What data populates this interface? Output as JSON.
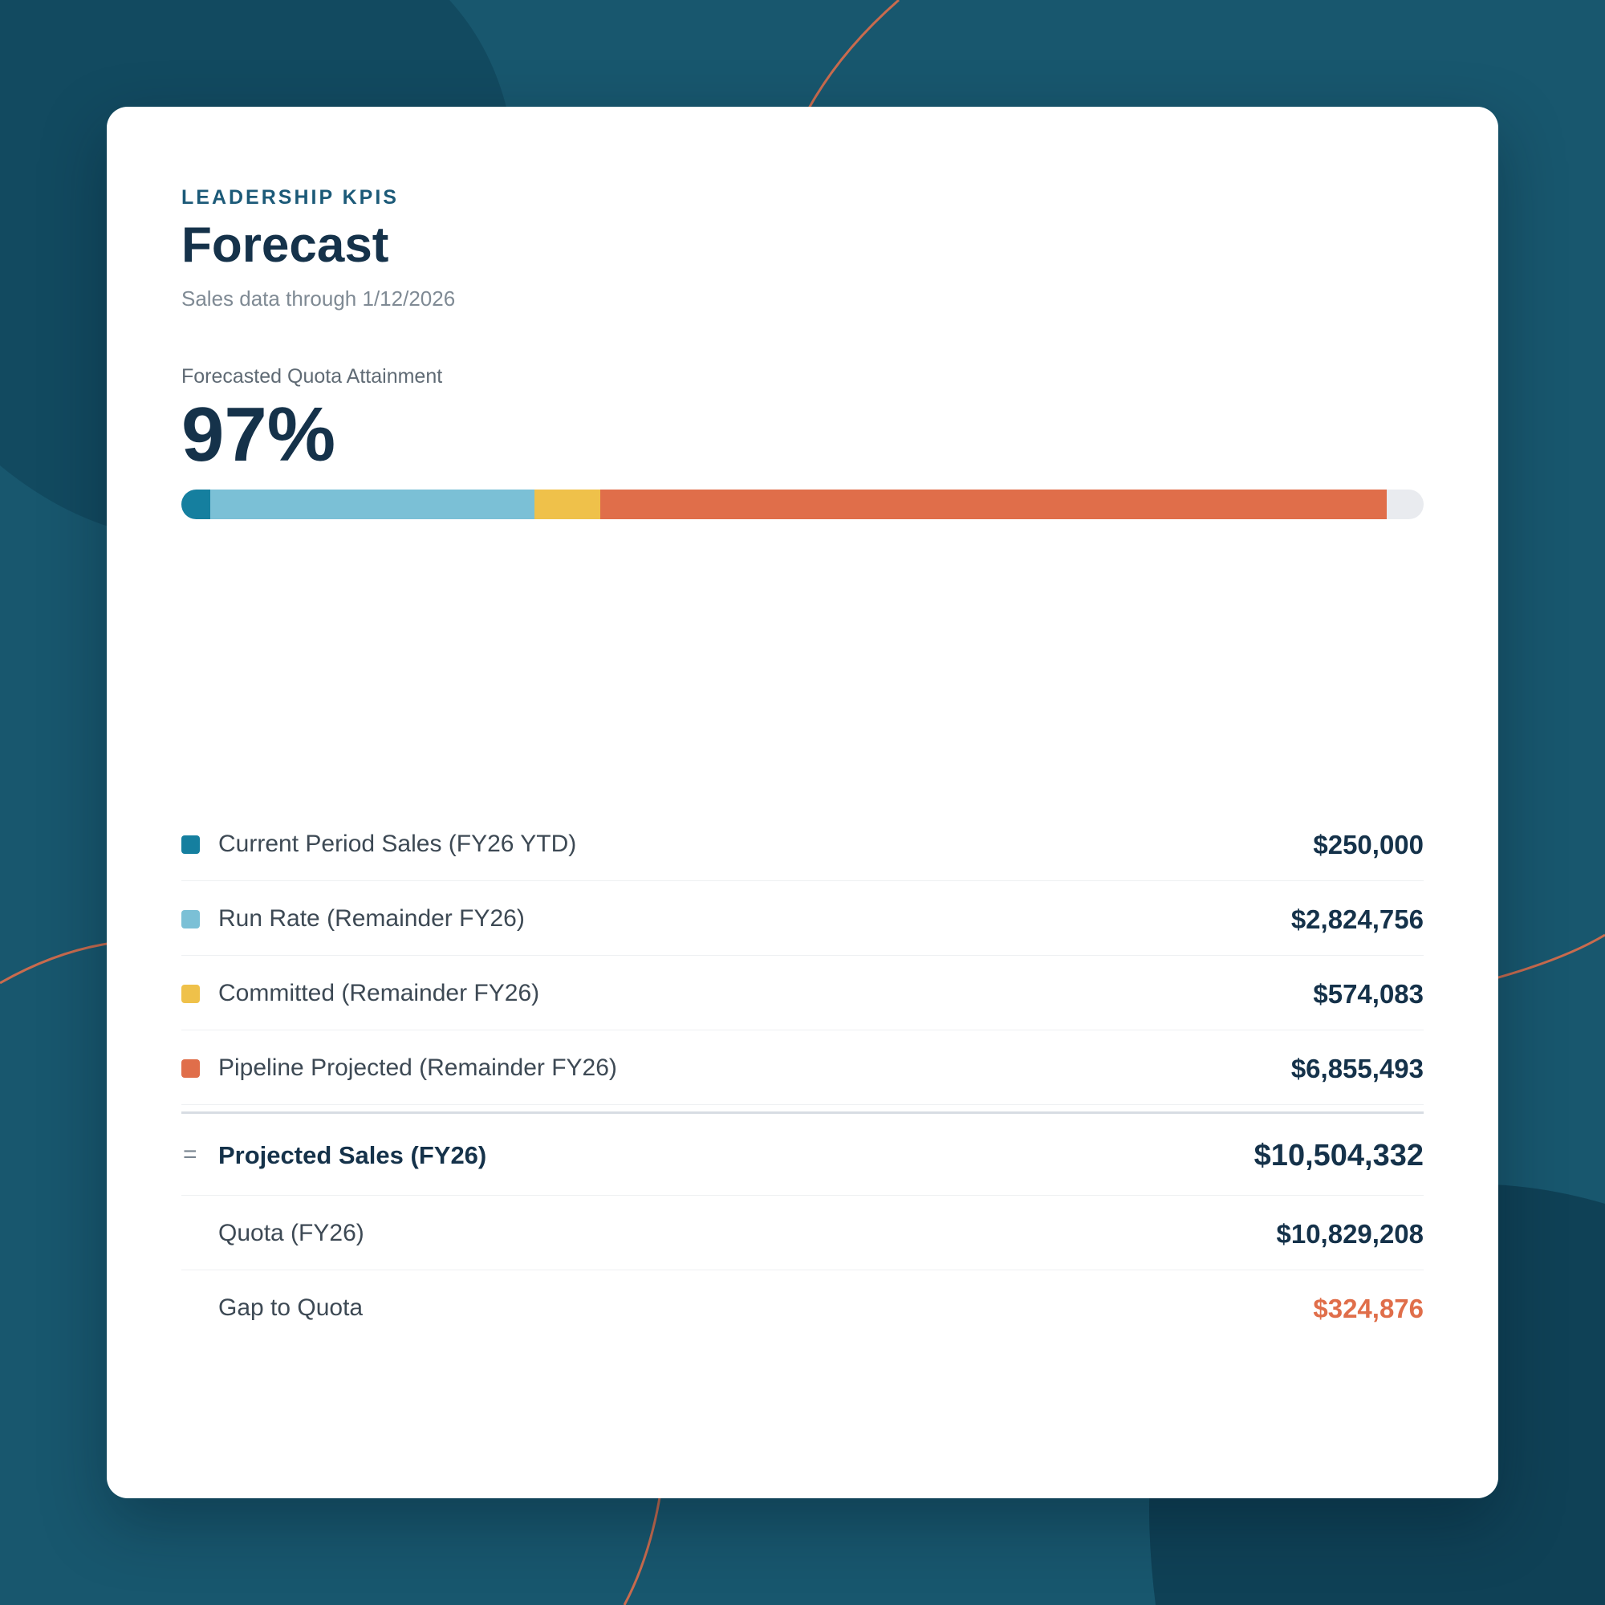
{
  "header": {
    "eyebrow": "LEADERSHIP KPIS",
    "title": "Forecast",
    "subtitle": "Sales data through 1/12/2026"
  },
  "metric": {
    "label": "Forecasted Quota Attainment",
    "value": "97%"
  },
  "colors": {
    "current": "#157f9f",
    "run_rate": "#7bc0d6",
    "committed": "#efc14a",
    "pipeline": "#e06e4a",
    "gap": "#e06e4a",
    "track": "#e9ebef"
  },
  "progress": {
    "quota": 10829208,
    "segments": [
      {
        "key": "current",
        "amount": 250000
      },
      {
        "key": "run_rate",
        "amount": 2824756
      },
      {
        "key": "committed",
        "amount": 574083
      },
      {
        "key": "pipeline",
        "amount": 6855493
      }
    ]
  },
  "rows": [
    {
      "label": "Current Period Sales (FY26 YTD)",
      "value": "$250,000",
      "color": "#157f9f"
    },
    {
      "label": "Run Rate (Remainder FY26)",
      "value": "$2,824,756",
      "color": "#7bc0d6"
    },
    {
      "label": "Committed (Remainder FY26)",
      "value": "$574,083",
      "color": "#efc14a"
    },
    {
      "label": "Pipeline Projected (Remainder FY26)",
      "value": "$6,855,493",
      "color": "#e06e4a"
    }
  ],
  "summary": {
    "total_symbol": "=",
    "total_label": "Projected Sales (FY26)",
    "total_value": "$10,504,332",
    "quota_label": "Quota (FY26)",
    "quota_value": "$10,829,208",
    "gap_label": "Gap to Quota",
    "gap_value": "$324,876"
  }
}
